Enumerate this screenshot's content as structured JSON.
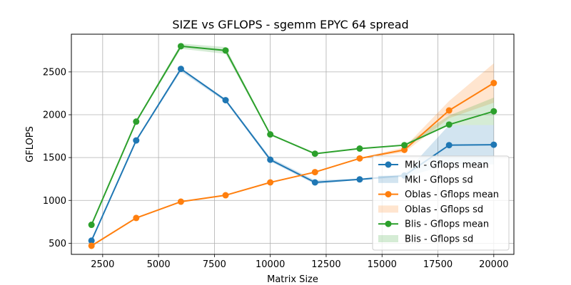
{
  "chart_data": {
    "type": "line",
    "title": "SIZE vs GFLOPS - sgemm  EPYC 64 spread",
    "xlabel": "Matrix Size",
    "ylabel": "GFLOPS",
    "xlim": [
      1100,
      20900
    ],
    "ylim": [
      370,
      2940
    ],
    "x_ticks": [
      2500,
      5000,
      7500,
      10000,
      12500,
      15000,
      17500,
      20000
    ],
    "y_ticks": [
      500,
      1000,
      1500,
      2000,
      2500
    ],
    "grid": true,
    "legend_position": "lower-right",
    "x": [
      2000,
      4000,
      6000,
      8000,
      10000,
      12000,
      14000,
      16000,
      18000,
      20000
    ],
    "series": [
      {
        "name": "Mkl - Gflops mean",
        "sd_name": "Mkl - Gflops sd",
        "color": "#1f77b4",
        "values": [
          530,
          1700,
          2535,
          2170,
          1475,
          1210,
          1245,
          1290,
          1645,
          1650
        ],
        "sd_lower": [
          525,
          1690,
          2505,
          2150,
          1455,
          1190,
          1240,
          1270,
          1420,
          1420
        ],
        "sd_upper": [
          540,
          1712,
          2548,
          2185,
          1500,
          1235,
          1255,
          1310,
          1880,
          1880
        ]
      },
      {
        "name": "Oblas - Gflops mean",
        "sd_name": "Oblas - Gflops sd",
        "color": "#ff7f0e",
        "values": [
          470,
          795,
          985,
          1060,
          1210,
          1330,
          1490,
          1590,
          2050,
          2370
        ],
        "sd_lower": [
          465,
          790,
          980,
          1055,
          1205,
          1325,
          1485,
          1560,
          1960,
          2140
        ],
        "sd_upper": [
          475,
          800,
          990,
          1065,
          1215,
          1335,
          1495,
          1620,
          2160,
          2600
        ]
      },
      {
        "name": "Blis - Gflops mean",
        "sd_name": "Blis - Gflops sd",
        "color": "#2ca02c",
        "values": [
          715,
          1920,
          2800,
          2750,
          1770,
          1545,
          1605,
          1645,
          1885,
          2040
        ],
        "sd_lower": [
          705,
          1910,
          2770,
          2710,
          1760,
          1540,
          1600,
          1640,
          1880,
          1880
        ],
        "sd_upper": [
          725,
          1935,
          2830,
          2790,
          1780,
          1550,
          1610,
          1650,
          1990,
          2200
        ]
      }
    ]
  }
}
